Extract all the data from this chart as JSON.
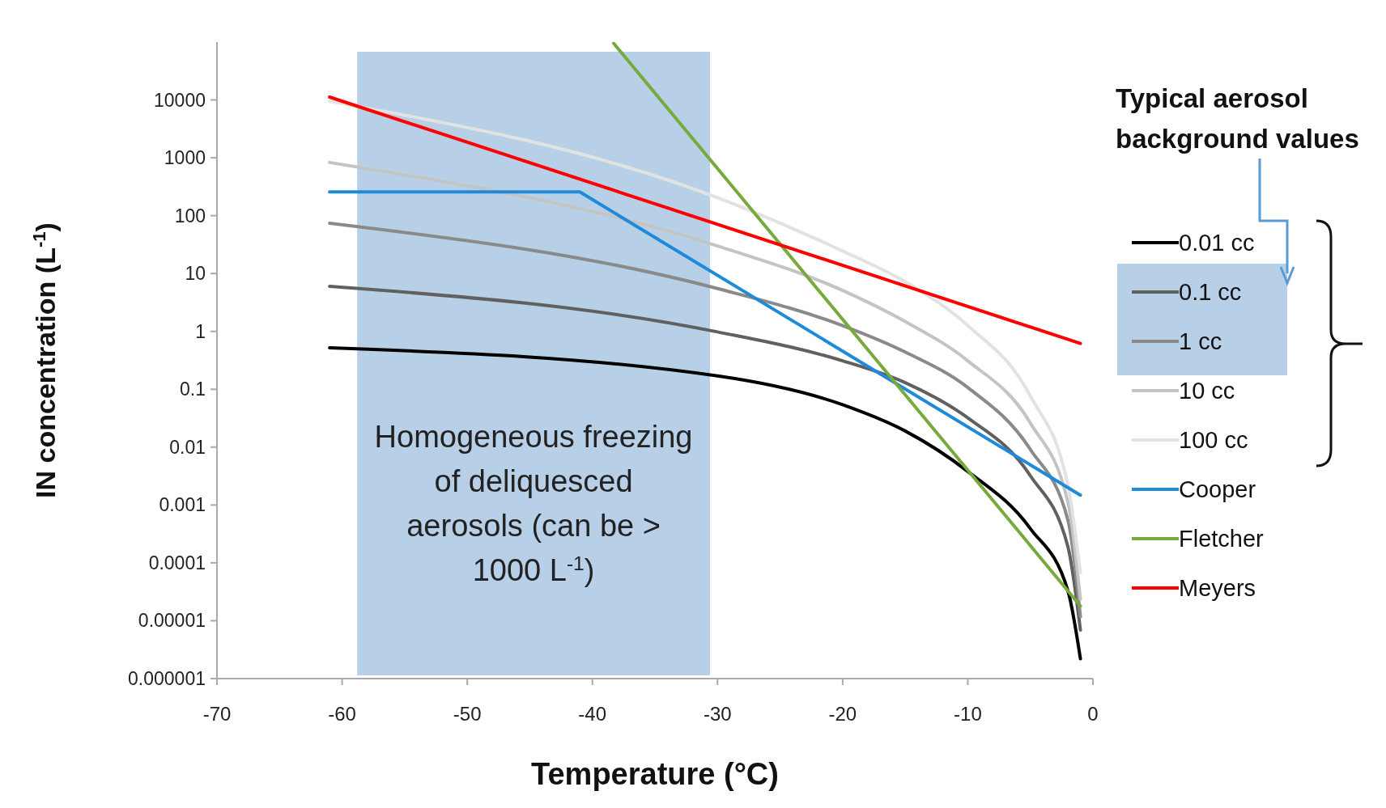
{
  "chart_data": {
    "type": "line",
    "xlabel": "Temperature (°C)",
    "ylabel": "IN concentration (L$^{-1}$)",
    "legend_title": "Typical aerosol background values",
    "log": "y",
    "legend": "right",
    "grid": false,
    "line_style": "solid",
    "xlim": [
      -70,
      0
    ],
    "xticks": [
      -70,
      -60,
      -50,
      -40,
      -30,
      -20,
      -10,
      0
    ],
    "ylim": [
      1e-06,
      100000
    ],
    "yticks": [
      {
        "value": 1e-06,
        "label": "0.000001"
      },
      {
        "value": 1e-05,
        "label": "0.00001"
      },
      {
        "value": 0.0001,
        "label": "0.0001"
      },
      {
        "value": 0.001,
        "label": "0.001"
      },
      {
        "value": 0.01,
        "label": "0.01"
      },
      {
        "value": 0.1,
        "label": "0.1"
      },
      1,
      10,
      100,
      1000,
      10000
    ],
    "x": [
      -61,
      -30,
      -20,
      -15,
      -10,
      -5,
      -2,
      -1
    ],
    "series": [
      {
        "name": "0.01 cc",
        "color": "#000000",
        "values": [
          0.52,
          0.17,
          0.054,
          0.019,
          0.0038,
          0.00039,
          3.3e-05,
          2.2e-06
        ]
      },
      {
        "name": "0.1 cc",
        "color": "#606060",
        "values": [
          6.0,
          0.98,
          0.31,
          0.13,
          0.032,
          0.0032,
          0.00019,
          6.9e-06
        ]
      },
      {
        "name": "1 cc",
        "color": "#8a8a8a",
        "values": [
          74,
          5.5,
          1.26,
          0.44,
          0.107,
          0.0091,
          0.00055,
          1.17e-05
        ]
      },
      {
        "name": "10 cc",
        "color": "#c4c4c4",
        "values": [
          830,
          30,
          5.1,
          1.48,
          0.31,
          0.026,
          0.00112,
          2.34e-05
        ]
      },
      {
        "name": "100 cc",
        "color": "#e2e2e2",
        "values": [
          9500,
          204,
          24.5,
          7.2,
          1.26,
          0.076,
          0.0022,
          6.8e-05
        ]
      },
      {
        "name": "Cooper",
        "color": "#1f8ad8",
        "x": [
          -61,
          -41,
          -1
        ],
        "values": [
          257,
          257,
          0.00148
        ]
      },
      {
        "name": "Fletcher",
        "color": "#77aa3c",
        "x": [
          -38.3,
          -1
        ],
        "values": [
          95000,
          1.8e-05
        ]
      },
      {
        "name": "Meyers",
        "color": "#ff0000",
        "x": [
          -61,
          -1
        ],
        "values": [
          11200,
          0.62
        ]
      }
    ],
    "bands": [
      {
        "axis": "x",
        "from": -58.8,
        "to": -30.6,
        "color": "#b8cfe8"
      }
    ],
    "annotations": [
      "Homogeneous freezing of deliquesced aerosols (can be > 1000 L$^{-1}$)"
    ]
  }
}
